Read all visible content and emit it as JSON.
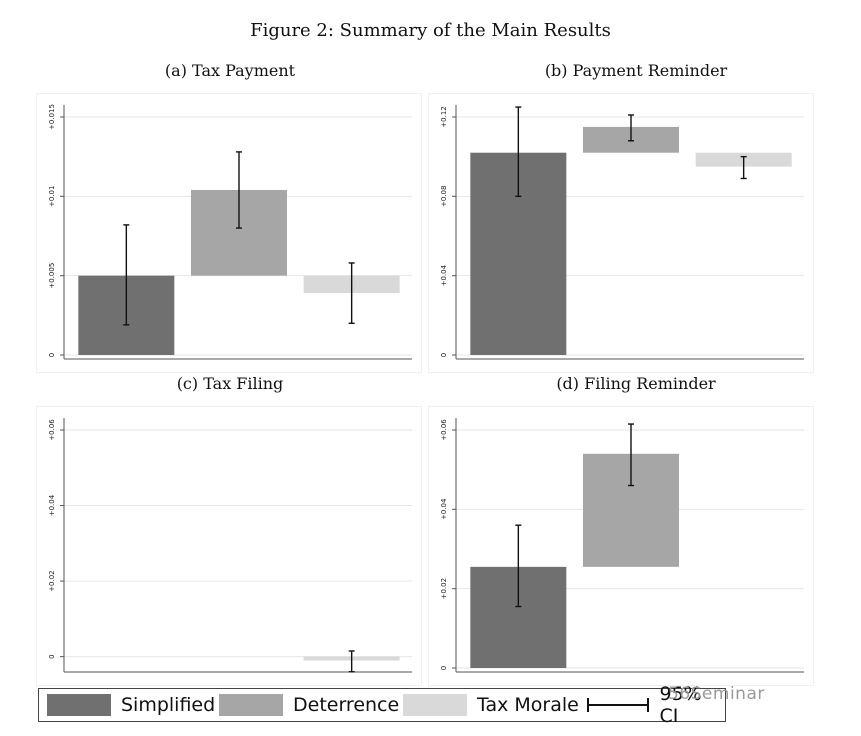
{
  "figure_title": "Figure 2: Summary of the Main Results",
  "legend": {
    "items": [
      {
        "label": "Simplified",
        "color": "#707070"
      },
      {
        "label": "Deterrence",
        "color": "#a6a6a6"
      },
      {
        "label": "Tax Morale",
        "color": "#d9d9d9"
      }
    ],
    "ci_label": "95% CI",
    "position": "bottom"
  },
  "watermark": "56Seminar",
  "chart_data": [
    {
      "type": "bar",
      "subtype": "waterfall",
      "title": "(a) Tax Payment",
      "ylim": [
        0,
        0.015
      ],
      "yticks": [
        0,
        0.005,
        0.01,
        0.015
      ],
      "ytick_labels": [
        "0",
        "+0.005",
        "+0.01",
        "+0.015"
      ],
      "grid": true,
      "bars": [
        {
          "category": "Simplified",
          "base": 0,
          "value": 0.005,
          "ci": [
            0.0019,
            0.0082
          ]
        },
        {
          "category": "Deterrence",
          "base": 0.005,
          "value": 0.0104,
          "ci": [
            0.008,
            0.0128
          ]
        },
        {
          "category": "Tax Morale",
          "base": 0.0039,
          "value": 0.005,
          "ci": [
            0.002,
            0.0058
          ]
        }
      ]
    },
    {
      "type": "bar",
      "subtype": "waterfall",
      "title": "(b) Payment Reminder",
      "ylim": [
        0,
        0.12
      ],
      "yticks": [
        0,
        0.04,
        0.08,
        0.12
      ],
      "ytick_labels": [
        "0",
        "+0.04",
        "+0.08",
        "+0.12"
      ],
      "grid": true,
      "bars": [
        {
          "category": "Simplified",
          "base": 0,
          "value": 0.102,
          "ci": [
            0.08,
            0.125
          ]
        },
        {
          "category": "Deterrence",
          "base": 0.102,
          "value": 0.115,
          "ci": [
            0.108,
            0.121
          ]
        },
        {
          "category": "Tax Morale",
          "base": 0.095,
          "value": 0.102,
          "ci": [
            0.089,
            0.1
          ]
        }
      ]
    },
    {
      "type": "bar",
      "subtype": "waterfall",
      "title": "(c) Tax Filing",
      "ylim": [
        -0.003,
        0.06
      ],
      "yticks": [
        0,
        0.02,
        0.04,
        0.06
      ],
      "ytick_labels": [
        "0",
        "+0.02",
        "+0.04",
        "+0.06"
      ],
      "grid": true,
      "bars": [
        {
          "category": "Simplified",
          "base": 0,
          "value": 0,
          "ci": null
        },
        {
          "category": "Deterrence",
          "base": 0,
          "value": 0,
          "ci": null
        },
        {
          "category": "Tax Morale",
          "base": -0.001,
          "value": 0,
          "ci": [
            -0.004,
            0.0015
          ]
        }
      ]
    },
    {
      "type": "bar",
      "subtype": "waterfall",
      "title": "(d) Filing Reminder",
      "ylim": [
        0,
        0.06
      ],
      "yticks": [
        0,
        0.02,
        0.04,
        0.06
      ],
      "ytick_labels": [
        "0",
        "+0.02",
        "+0.04",
        "+0.06"
      ],
      "grid": true,
      "bars": [
        {
          "category": "Simplified",
          "base": 0,
          "value": 0.0255,
          "ci": [
            0.0155,
            0.036
          ]
        },
        {
          "category": "Deterrence",
          "base": 0.0255,
          "value": 0.054,
          "ci": [
            0.046,
            0.0615
          ]
        },
        {
          "category": "Tax Morale",
          "base": 0.0255,
          "value": 0.0255,
          "ci": null
        }
      ]
    }
  ]
}
